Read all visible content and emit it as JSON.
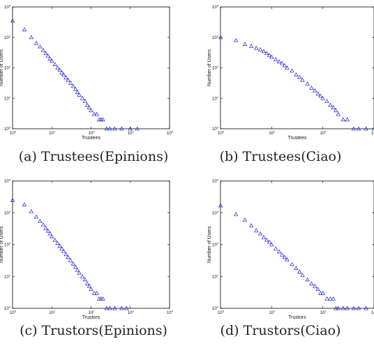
{
  "chart_data": [
    {
      "type": "scatter",
      "caption": "(a) Trustees(Epinions)",
      "xlabel": "Trustees",
      "ylabel": "Number of Users",
      "xscale": "log",
      "yscale": "log",
      "xlim": [
        1,
        10000
      ],
      "ylim": [
        1,
        10000
      ],
      "xticks": [
        "10",
        "1",
        "10",
        "2",
        "10",
        "3",
        "10",
        "4"
      ],
      "xtick_labels": [
        {
          "base": "10",
          "exp": "0"
        },
        {
          "base": "10",
          "exp": "1"
        },
        {
          "base": "10",
          "exp": "2"
        },
        {
          "base": "10",
          "exp": "3"
        },
        {
          "base": "10",
          "exp": "4"
        }
      ],
      "ytick_labels": [
        {
          "base": "10",
          "exp": "0"
        },
        {
          "base": "10",
          "exp": "1"
        },
        {
          "base": "10",
          "exp": "2"
        },
        {
          "base": "10",
          "exp": "3"
        },
        {
          "base": "10",
          "exp": "4"
        }
      ],
      "marker": "triangle",
      "color": "#1f1fd6",
      "series": [
        {
          "x": [
            1,
            2,
            3,
            4,
            5,
            6,
            7,
            8,
            9,
            10,
            12,
            14,
            16,
            18,
            20,
            23,
            26,
            30,
            35,
            40,
            45,
            50,
            60,
            70,
            80,
            90,
            100,
            120,
            140,
            160,
            180,
            200,
            250,
            300,
            400,
            600,
            1000,
            1500
          ],
          "y": [
            3500,
            1800,
            1000,
            650,
            500,
            380,
            300,
            250,
            200,
            170,
            130,
            100,
            85,
            70,
            60,
            48,
            40,
            32,
            25,
            20,
            16,
            13,
            10,
            8,
            6,
            5,
            4,
            3,
            3,
            2,
            2,
            2,
            1,
            1,
            1,
            1,
            1,
            1
          ]
        }
      ]
    },
    {
      "type": "scatter",
      "caption": "(b) Trustees(Ciao)",
      "xlabel": "Trustees",
      "ylabel": "Number of Users",
      "xscale": "log",
      "yscale": "log",
      "xlim": [
        1,
        1000
      ],
      "ylim": [
        1,
        10000
      ],
      "xtick_labels": [
        {
          "base": "10",
          "exp": "0"
        },
        {
          "base": "10",
          "exp": "1"
        },
        {
          "base": "10",
          "exp": "2"
        },
        {
          "base": "10",
          "exp": "3"
        }
      ],
      "ytick_labels": [
        {
          "base": "10",
          "exp": "0"
        },
        {
          "base": "10",
          "exp": "1"
        },
        {
          "base": "10",
          "exp": "2"
        },
        {
          "base": "10",
          "exp": "3"
        },
        {
          "base": "10",
          "exp": "4"
        }
      ],
      "marker": "triangle",
      "color": "#1f1fd6",
      "series": [
        {
          "x": [
            1,
            2,
            3,
            4,
            5,
            6,
            7,
            8,
            9,
            10,
            12,
            14,
            16,
            18,
            20,
            25,
            30,
            35,
            40,
            50,
            60,
            70,
            80,
            90,
            100,
            120,
            140,
            160,
            180,
            200,
            250,
            300,
            400,
            500,
            700,
            1000
          ],
          "y": [
            1000,
            800,
            600,
            520,
            450,
            400,
            350,
            300,
            260,
            230,
            190,
            160,
            140,
            120,
            100,
            80,
            60,
            50,
            40,
            30,
            22,
            18,
            14,
            12,
            10,
            8,
            6,
            5,
            4,
            3,
            2,
            2,
            1,
            1,
            1,
            1
          ]
        }
      ]
    },
    {
      "type": "scatter",
      "caption": "(c) Trustors(Epinions)",
      "xlabel": "Trustors",
      "ylabel": "Number of Users",
      "xscale": "log",
      "yscale": "log",
      "xlim": [
        1,
        10000
      ],
      "ylim": [
        1,
        10000
      ],
      "xtick_labels": [
        {
          "base": "10",
          "exp": "0"
        },
        {
          "base": "10",
          "exp": "1"
        },
        {
          "base": "10",
          "exp": "2"
        },
        {
          "base": "10",
          "exp": "3"
        },
        {
          "base": "10",
          "exp": "4"
        }
      ],
      "ytick_labels": [
        {
          "base": "10",
          "exp": "0"
        },
        {
          "base": "10",
          "exp": "1"
        },
        {
          "base": "10",
          "exp": "2"
        },
        {
          "base": "10",
          "exp": "3"
        },
        {
          "base": "10",
          "exp": "4"
        }
      ],
      "marker": "triangle",
      "color": "#1f1fd6",
      "series": [
        {
          "x": [
            1,
            2,
            3,
            4,
            5,
            6,
            7,
            8,
            9,
            10,
            12,
            14,
            16,
            18,
            20,
            23,
            26,
            30,
            35,
            40,
            45,
            50,
            60,
            70,
            80,
            90,
            100,
            120,
            140,
            160,
            180,
            200,
            250,
            300,
            400,
            600,
            800
          ],
          "y": [
            2500,
            1800,
            1100,
            750,
            550,
            420,
            330,
            270,
            220,
            180,
            140,
            110,
            90,
            75,
            62,
            50,
            40,
            32,
            25,
            20,
            16,
            13,
            10,
            8,
            6,
            5,
            4,
            3,
            3,
            2,
            2,
            2,
            1,
            1,
            1,
            1,
            1
          ]
        }
      ]
    },
    {
      "type": "scatter",
      "caption": "(d) Trustors(Ciao)",
      "xlabel": "Trustors",
      "ylabel": "Number of Users",
      "xscale": "log",
      "yscale": "log",
      "xlim": [
        1,
        1000
      ],
      "ylim": [
        1,
        10000
      ],
      "xtick_labels": [
        {
          "base": "10",
          "exp": "0"
        },
        {
          "base": "10",
          "exp": "1"
        },
        {
          "base": "10",
          "exp": "2"
        },
        {
          "base": "10",
          "exp": "3"
        }
      ],
      "ytick_labels": [
        {
          "base": "10",
          "exp": "0"
        },
        {
          "base": "10",
          "exp": "1"
        },
        {
          "base": "10",
          "exp": "2"
        },
        {
          "base": "10",
          "exp": "3"
        },
        {
          "base": "10",
          "exp": "4"
        }
      ],
      "marker": "triangle",
      "color": "#1f1fd6",
      "series": [
        {
          "x": [
            1,
            2,
            3,
            4,
            5,
            6,
            7,
            8,
            9,
            10,
            12,
            14,
            16,
            18,
            20,
            25,
            30,
            35,
            40,
            50,
            60,
            70,
            80,
            90,
            100,
            120,
            140,
            160,
            180,
            200,
            250,
            300,
            400,
            500,
            700
          ],
          "y": [
            1700,
            900,
            600,
            400,
            280,
            220,
            170,
            140,
            120,
            100,
            75,
            60,
            48,
            40,
            34,
            24,
            18,
            14,
            11,
            8,
            6,
            5,
            4,
            3,
            3,
            2,
            2,
            2,
            1,
            1,
            1,
            1,
            1,
            1,
            1
          ]
        }
      ]
    }
  ]
}
